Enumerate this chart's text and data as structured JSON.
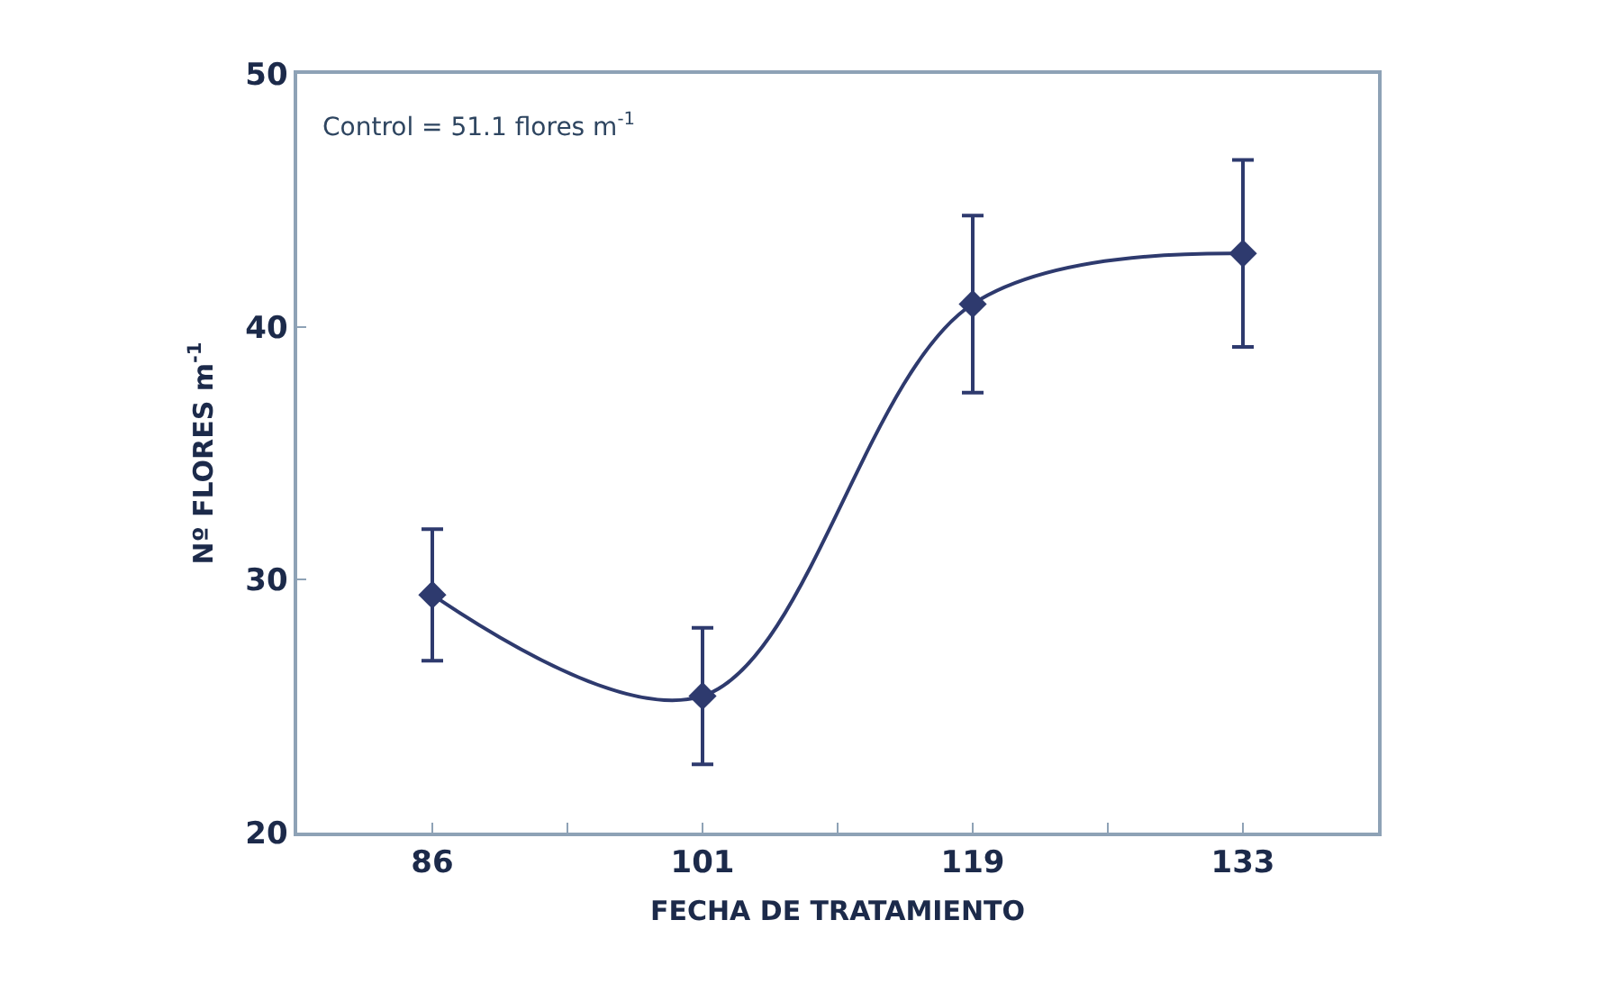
{
  "chart_data": {
    "type": "line",
    "xlabel": "FECHA DE TRATAMIENTO",
    "ylabel": "Nº FLORES m$^{-1}$",
    "annotations": [
      "Control = 51.1 flores m$^{-1}$"
    ],
    "categories": [
      "86",
      "101",
      "119",
      "133"
    ],
    "series": [
      {
        "color": "#2e3a6e",
        "values": [
          29.4,
          25.4,
          40.9,
          42.9
        ],
        "errors": [
          2.6,
          2.7,
          3.5,
          3.7
        ]
      }
    ],
    "ylim": [
      20,
      50
    ],
    "yticks": [
      20,
      30,
      40,
      50
    ],
    "marker": "diamond",
    "line_style": "solid"
  }
}
